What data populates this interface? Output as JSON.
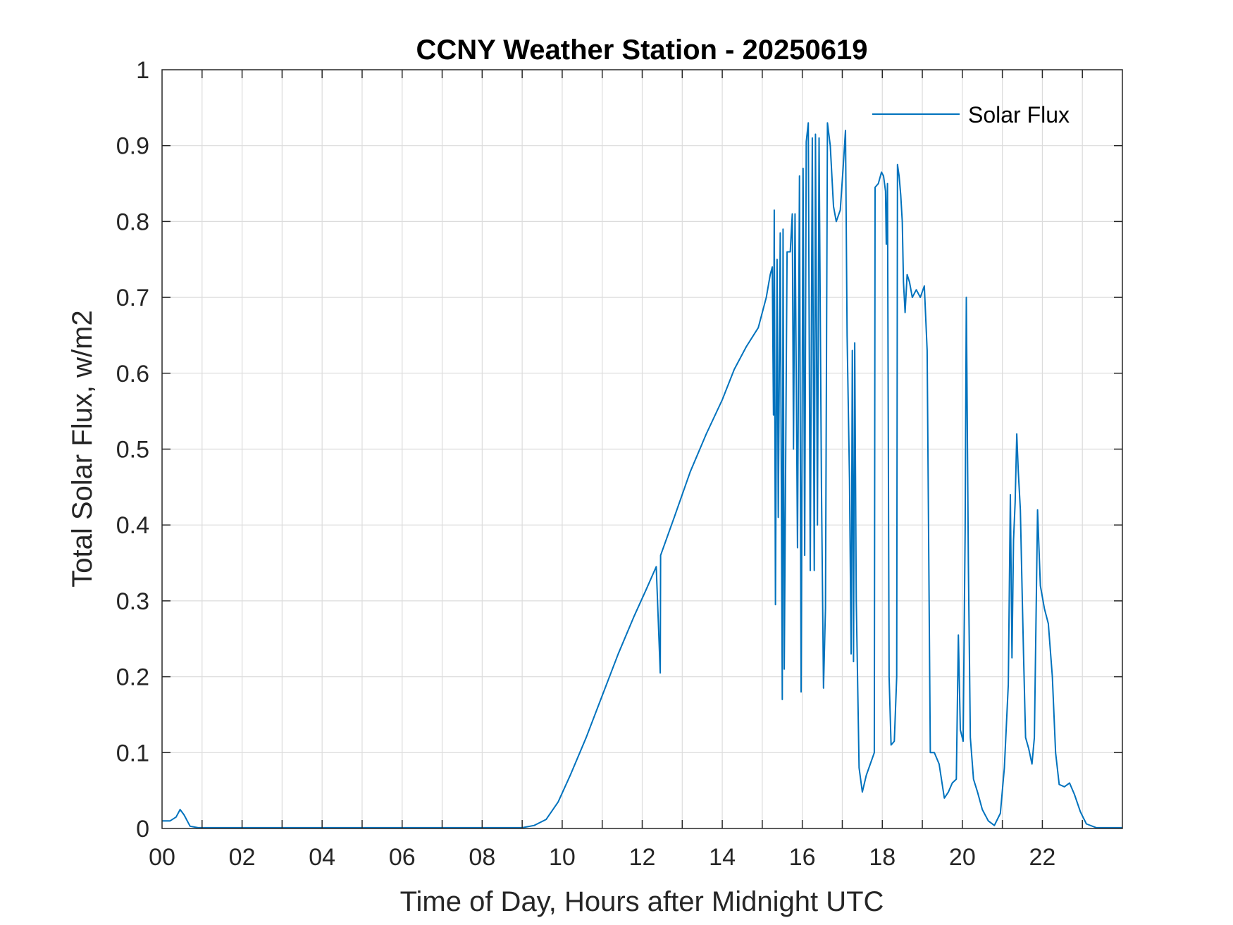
{
  "chart_data": {
    "type": "line",
    "title": "CCNY Weather Station - 20250619",
    "xlabel": "Time of Day, Hours after Midnight UTC",
    "ylabel": "Total Solar Flux, w/m2",
    "xlim": [
      0,
      24
    ],
    "ylim": [
      0,
      1
    ],
    "xticks": [
      0,
      2,
      4,
      6,
      8,
      10,
      12,
      14,
      16,
      18,
      20,
      22
    ],
    "xtick_labels": [
      "00",
      "02",
      "04",
      "06",
      "08",
      "10",
      "12",
      "14",
      "16",
      "18",
      "20",
      "22"
    ],
    "yticks": [
      0,
      0.1,
      0.2,
      0.3,
      0.4,
      0.5,
      0.6,
      0.7,
      0.8,
      0.9,
      1
    ],
    "ytick_labels": [
      "0",
      "0.1",
      "0.2",
      "0.3",
      "0.4",
      "0.5",
      "0.6",
      "0.7",
      "0.8",
      "0.9",
      "1"
    ],
    "grid": true,
    "legend": {
      "position": "top-right",
      "entries": [
        "Solar Flux"
      ]
    },
    "series": [
      {
        "name": "Solar Flux",
        "color": "#0072BD",
        "points": [
          [
            0,
            0.01
          ],
          [
            0.2,
            0.01
          ],
          [
            0.35,
            0.015
          ],
          [
            0.45,
            0.025
          ],
          [
            0.55,
            0.018
          ],
          [
            0.7,
            0.003
          ],
          [
            0.9,
            0.001
          ],
          [
            2,
            0.001
          ],
          [
            4,
            0.001
          ],
          [
            6,
            0.001
          ],
          [
            8,
            0.001
          ],
          [
            9.0,
            0.001
          ],
          [
            9.3,
            0.004
          ],
          [
            9.6,
            0.012
          ],
          [
            9.9,
            0.035
          ],
          [
            10.2,
            0.07
          ],
          [
            10.6,
            0.12
          ],
          [
            11.0,
            0.175
          ],
          [
            11.4,
            0.23
          ],
          [
            11.8,
            0.28
          ],
          [
            12.1,
            0.315
          ],
          [
            12.35,
            0.345
          ],
          [
            12.45,
            0.205
          ],
          [
            12.46,
            0.36
          ],
          [
            12.8,
            0.41
          ],
          [
            13.2,
            0.47
          ],
          [
            13.6,
            0.52
          ],
          [
            14.0,
            0.565
          ],
          [
            14.3,
            0.605
          ],
          [
            14.6,
            0.635
          ],
          [
            14.9,
            0.66
          ],
          [
            15.1,
            0.7
          ],
          [
            15.2,
            0.73
          ],
          [
            15.25,
            0.74
          ],
          [
            15.28,
            0.545
          ],
          [
            15.3,
            0.815
          ],
          [
            15.33,
            0.295
          ],
          [
            15.37,
            0.75
          ],
          [
            15.4,
            0.41
          ],
          [
            15.45,
            0.785
          ],
          [
            15.5,
            0.17
          ],
          [
            15.52,
            0.79
          ],
          [
            15.55,
            0.21
          ],
          [
            15.62,
            0.76
          ],
          [
            15.7,
            0.76
          ],
          [
            15.75,
            0.81
          ],
          [
            15.78,
            0.5
          ],
          [
            15.82,
            0.81
          ],
          [
            15.88,
            0.37
          ],
          [
            15.93,
            0.86
          ],
          [
            15.97,
            0.18
          ],
          [
            16.02,
            0.87
          ],
          [
            16.06,
            0.36
          ],
          [
            16.1,
            0.905
          ],
          [
            16.15,
            0.93
          ],
          [
            16.2,
            0.34
          ],
          [
            16.25,
            0.91
          ],
          [
            16.3,
            0.34
          ],
          [
            16.33,
            0.915
          ],
          [
            16.38,
            0.4
          ],
          [
            16.42,
            0.91
          ],
          [
            16.48,
            0.45
          ],
          [
            16.53,
            0.185
          ],
          [
            16.58,
            0.29
          ],
          [
            16.63,
            0.93
          ],
          [
            16.7,
            0.9
          ],
          [
            16.78,
            0.82
          ],
          [
            16.85,
            0.8
          ],
          [
            16.95,
            0.815
          ],
          [
            17.02,
            0.87
          ],
          [
            17.08,
            0.92
          ],
          [
            17.12,
            0.65
          ],
          [
            17.18,
            0.46
          ],
          [
            17.22,
            0.23
          ],
          [
            17.25,
            0.63
          ],
          [
            17.28,
            0.22
          ],
          [
            17.31,
            0.64
          ],
          [
            17.35,
            0.3
          ],
          [
            17.42,
            0.08
          ],
          [
            17.5,
            0.048
          ],
          [
            17.6,
            0.07
          ],
          [
            17.7,
            0.085
          ],
          [
            17.8,
            0.1
          ],
          [
            17.82,
            0.845
          ],
          [
            17.9,
            0.85
          ],
          [
            17.98,
            0.865
          ],
          [
            18.03,
            0.86
          ],
          [
            18.08,
            0.84
          ],
          [
            18.1,
            0.77
          ],
          [
            18.13,
            0.85
          ],
          [
            18.17,
            0.2
          ],
          [
            18.22,
            0.11
          ],
          [
            18.3,
            0.115
          ],
          [
            18.36,
            0.2
          ],
          [
            18.38,
            0.875
          ],
          [
            18.42,
            0.86
          ],
          [
            18.46,
            0.835
          ],
          [
            18.5,
            0.8
          ],
          [
            18.53,
            0.72
          ],
          [
            18.57,
            0.68
          ],
          [
            18.62,
            0.73
          ],
          [
            18.68,
            0.72
          ],
          [
            18.75,
            0.7
          ],
          [
            18.85,
            0.71
          ],
          [
            18.95,
            0.7
          ],
          [
            19.05,
            0.715
          ],
          [
            19.12,
            0.63
          ],
          [
            19.2,
            0.1
          ],
          [
            19.3,
            0.1
          ],
          [
            19.42,
            0.085
          ],
          [
            19.55,
            0.04
          ],
          [
            19.65,
            0.048
          ],
          [
            19.75,
            0.06
          ],
          [
            19.85,
            0.065
          ],
          [
            19.9,
            0.255
          ],
          [
            19.95,
            0.13
          ],
          [
            20.02,
            0.115
          ],
          [
            20.07,
            0.39
          ],
          [
            20.1,
            0.7
          ],
          [
            20.15,
            0.35
          ],
          [
            20.2,
            0.12
          ],
          [
            20.28,
            0.065
          ],
          [
            20.38,
            0.048
          ],
          [
            20.5,
            0.025
          ],
          [
            20.65,
            0.01
          ],
          [
            20.8,
            0.004
          ],
          [
            20.95,
            0.02
          ],
          [
            21.05,
            0.08
          ],
          [
            21.15,
            0.19
          ],
          [
            21.2,
            0.44
          ],
          [
            21.24,
            0.225
          ],
          [
            21.28,
            0.38
          ],
          [
            21.32,
            0.43
          ],
          [
            21.36,
            0.52
          ],
          [
            21.4,
            0.47
          ],
          [
            21.45,
            0.42
          ],
          [
            21.5,
            0.3
          ],
          [
            21.53,
            0.23
          ],
          [
            21.58,
            0.12
          ],
          [
            21.66,
            0.105
          ],
          [
            21.74,
            0.085
          ],
          [
            21.8,
            0.12
          ],
          [
            21.88,
            0.42
          ],
          [
            21.95,
            0.32
          ],
          [
            22.05,
            0.29
          ],
          [
            22.15,
            0.27
          ],
          [
            22.25,
            0.2
          ],
          [
            22.33,
            0.1
          ],
          [
            22.42,
            0.058
          ],
          [
            22.55,
            0.055
          ],
          [
            22.68,
            0.06
          ],
          [
            22.8,
            0.045
          ],
          [
            22.95,
            0.022
          ],
          [
            23.1,
            0.006
          ],
          [
            23.35,
            0.001
          ],
          [
            24,
            0.001
          ]
        ]
      }
    ]
  }
}
